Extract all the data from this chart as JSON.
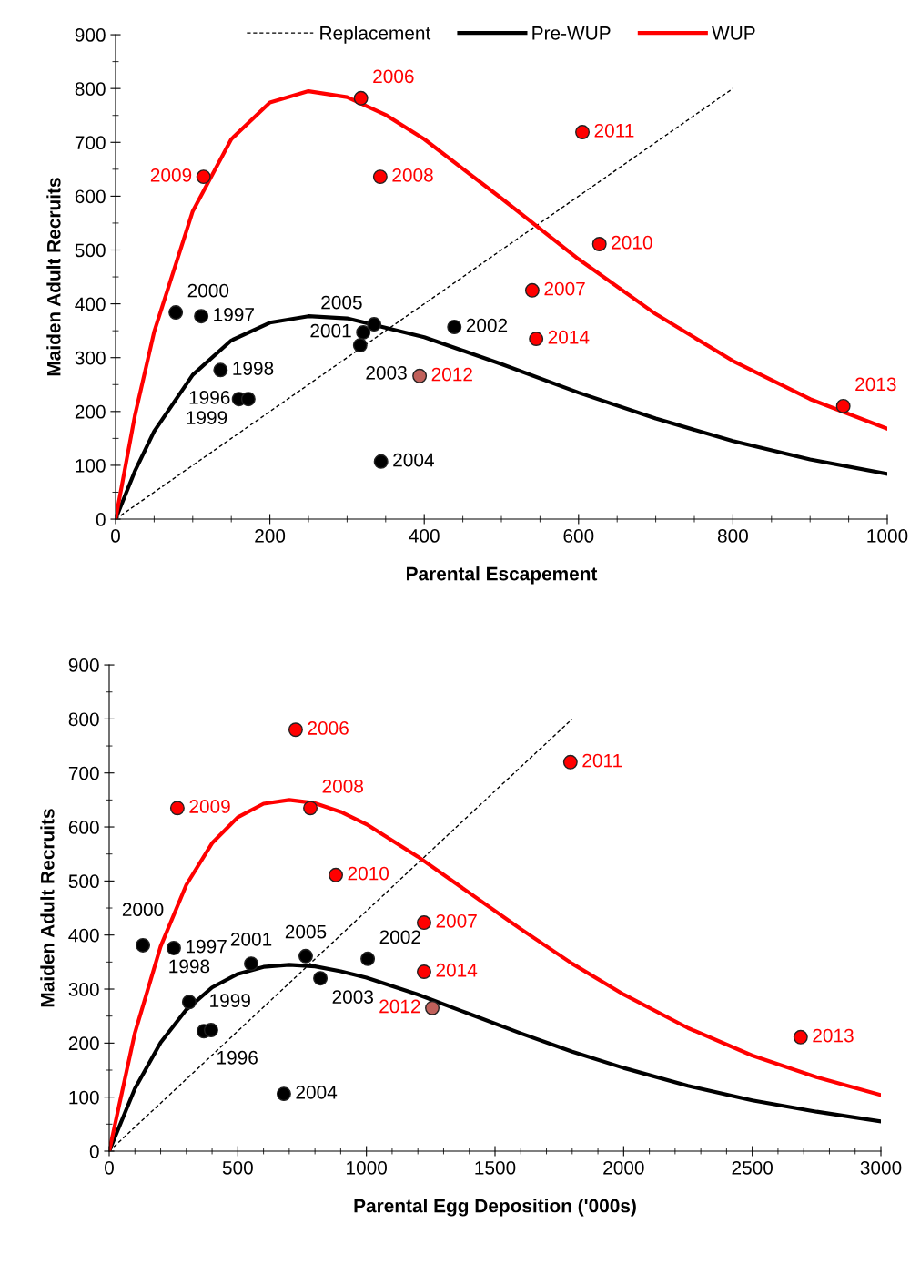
{
  "chart_data": [
    {
      "type": "scatter",
      "xlabel": "Parental Escapement",
      "ylabel": "Maiden Adult Recruits",
      "xlim": [
        0,
        1000
      ],
      "ylim": [
        0,
        900
      ],
      "xticks": [
        0,
        200,
        400,
        600,
        800,
        1000
      ],
      "yticks": [
        0,
        100,
        200,
        300,
        400,
        500,
        600,
        700,
        800,
        900
      ],
      "legend": "top",
      "grid": false,
      "series": [
        {
          "type": "line",
          "name": "Replacement",
          "color": "#000000",
          "line_style": "dotted",
          "x": [
            0,
            800
          ],
          "values": [
            0,
            800
          ]
        },
        {
          "type": "line",
          "name": "Pre-WUP",
          "color": "#000000",
          "line_style": "solid",
          "x": [
            0,
            25,
            50,
            100,
            150,
            200,
            250,
            300,
            400,
            500,
            600,
            700,
            800,
            900,
            1000
          ],
          "values": [
            0,
            89,
            163,
            268,
            332,
            365,
            377,
            373,
            338,
            288,
            235,
            187,
            145,
            111,
            84
          ]
        },
        {
          "type": "line",
          "name": "WUP",
          "color": "#ff0000",
          "line_style": "solid",
          "x": [
            0,
            25,
            50,
            100,
            150,
            200,
            250,
            300,
            350,
            400,
            500,
            600,
            700,
            800,
            900,
            1000
          ],
          "values": [
            0,
            192,
            348,
            572,
            706,
            774,
            795,
            784,
            751,
            706,
            596,
            483,
            381,
            294,
            223,
            168
          ]
        },
        {
          "marker": "circle",
          "color": "#000000",
          "x": [
            78,
            111,
            136,
            160,
            172,
            321,
            317,
            335,
            439,
            344
          ],
          "values": [
            384,
            377,
            277,
            223,
            223,
            347,
            323,
            362,
            357,
            107
          ]
        },
        {
          "marker": "circle",
          "color": "#ff0000",
          "colors": [
            "#ff0000",
            "#ff0000",
            "#ff0000",
            "#ff0000",
            "#ff0000",
            "#ff0000",
            "#ff0000",
            "#c0605a",
            "#ff0000"
          ],
          "x": [
            318,
            114,
            343,
            605,
            627,
            540,
            545,
            394,
            943
          ],
          "values": [
            782,
            636,
            636,
            719,
            511,
            425,
            335,
            266,
            210
          ]
        }
      ],
      "annotations": [
        {
          "text": "2000",
          "x": 78,
          "y": 384
        },
        {
          "text": "1997",
          "x": 111,
          "y": 377
        },
        {
          "text": "1998",
          "x": 136,
          "y": 277
        },
        {
          "text": "1999",
          "x": 160,
          "y": 223
        },
        {
          "text": "1996",
          "x": 172,
          "y": 223
        },
        {
          "text": "2001",
          "x": 321,
          "y": 347
        },
        {
          "text": "2003",
          "x": 317,
          "y": 323
        },
        {
          "text": "2005",
          "x": 335,
          "y": 362
        },
        {
          "text": "2002",
          "x": 439,
          "y": 357
        },
        {
          "text": "2004",
          "x": 344,
          "y": 107
        },
        {
          "text": "2006",
          "x": 318,
          "y": 782
        },
        {
          "text": "2009",
          "x": 114,
          "y": 636
        },
        {
          "text": "2008",
          "x": 343,
          "y": 636
        },
        {
          "text": "2011",
          "x": 605,
          "y": 719
        },
        {
          "text": "2010",
          "x": 627,
          "y": 511
        },
        {
          "text": "2007",
          "x": 540,
          "y": 425
        },
        {
          "text": "2014",
          "x": 545,
          "y": 335
        },
        {
          "text": "2012",
          "x": 394,
          "y": 266
        },
        {
          "text": "2013",
          "x": 943,
          "y": 210
        }
      ]
    },
    {
      "type": "scatter",
      "xlabel": "Parental Egg Deposition ('000s)",
      "ylabel": "Maiden Adult Recruits",
      "xlim": [
        0,
        3000
      ],
      "ylim": [
        0,
        900
      ],
      "xticks": [
        0,
        500,
        1000,
        1500,
        2000,
        2500,
        3000
      ],
      "yticks": [
        0,
        100,
        200,
        300,
        400,
        500,
        600,
        700,
        800,
        900
      ],
      "grid": false,
      "series": [
        {
          "type": "line",
          "color": "#000000",
          "line_style": "dotted",
          "x": [
            0,
            1800
          ],
          "values": [
            0,
            800
          ]
        },
        {
          "type": "line",
          "color": "#000000",
          "line_style": "solid",
          "x": [
            0,
            100,
            200,
            300,
            400,
            500,
            600,
            700,
            800,
            900,
            1000,
            1200,
            1400,
            1600,
            1800,
            2000,
            2250,
            2500,
            2750,
            3000
          ],
          "values": [
            0,
            116,
            201,
            262,
            303,
            328,
            341,
            345,
            342,
            333,
            321,
            290,
            254,
            218,
            184,
            154,
            121,
            94,
            73,
            55
          ]
        },
        {
          "type": "line",
          "color": "#ff0000",
          "line_style": "solid",
          "x": [
            0,
            100,
            200,
            300,
            400,
            500,
            600,
            700,
            800,
            900,
            1000,
            1200,
            1400,
            1600,
            1800,
            2000,
            2250,
            2500,
            2750,
            3000
          ],
          "values": [
            0,
            219,
            379,
            493,
            570,
            618,
            643,
            650,
            644,
            628,
            605,
            545,
            478,
            411,
            347,
            290,
            228,
            177,
            137,
            104
          ]
        },
        {
          "marker": "circle",
          "color": "#000000",
          "x": [
            131,
            251,
            311,
            368,
            396,
            552,
            821,
            764,
            1005,
            679
          ],
          "values": [
            381,
            376,
            276,
            222,
            224,
            347,
            320,
            361,
            356,
            106
          ]
        },
        {
          "marker": "circle",
          "color": "#ff0000",
          "colors": [
            "#ff0000",
            "#ff0000",
            "#ff0000",
            "#ff0000",
            "#ff0000",
            "#ff0000",
            "#ff0000",
            "#c0605a",
            "#ff0000"
          ],
          "x": [
            725,
            265,
            782,
            1793,
            881,
            1224,
            1224,
            1256,
            2688
          ],
          "values": [
            780,
            635,
            635,
            720,
            511,
            423,
            332,
            265,
            211
          ]
        }
      ],
      "annotations": [
        {
          "text": "2000",
          "x": 131,
          "y": 381
        },
        {
          "text": "1997",
          "x": 251,
          "y": 376
        },
        {
          "text": "1998",
          "x": 311,
          "y": 276
        },
        {
          "text": "1999",
          "x": 368,
          "y": 222
        },
        {
          "text": "1996",
          "x": 396,
          "y": 224
        },
        {
          "text": "2001",
          "x": 552,
          "y": 347
        },
        {
          "text": "2003",
          "x": 821,
          "y": 320
        },
        {
          "text": "2005",
          "x": 764,
          "y": 361
        },
        {
          "text": "2002",
          "x": 1005,
          "y": 356
        },
        {
          "text": "2004",
          "x": 679,
          "y": 106
        },
        {
          "text": "2006",
          "x": 725,
          "y": 780
        },
        {
          "text": "2009",
          "x": 265,
          "y": 635
        },
        {
          "text": "2008",
          "x": 782,
          "y": 635
        },
        {
          "text": "2011",
          "x": 1793,
          "y": 720
        },
        {
          "text": "2010",
          "x": 881,
          "y": 511
        },
        {
          "text": "2007",
          "x": 1224,
          "y": 423
        },
        {
          "text": "2014",
          "x": 1224,
          "y": 332
        },
        {
          "text": "2012",
          "x": 1256,
          "y": 265
        },
        {
          "text": "2013",
          "x": 2688,
          "y": 211
        }
      ]
    }
  ]
}
